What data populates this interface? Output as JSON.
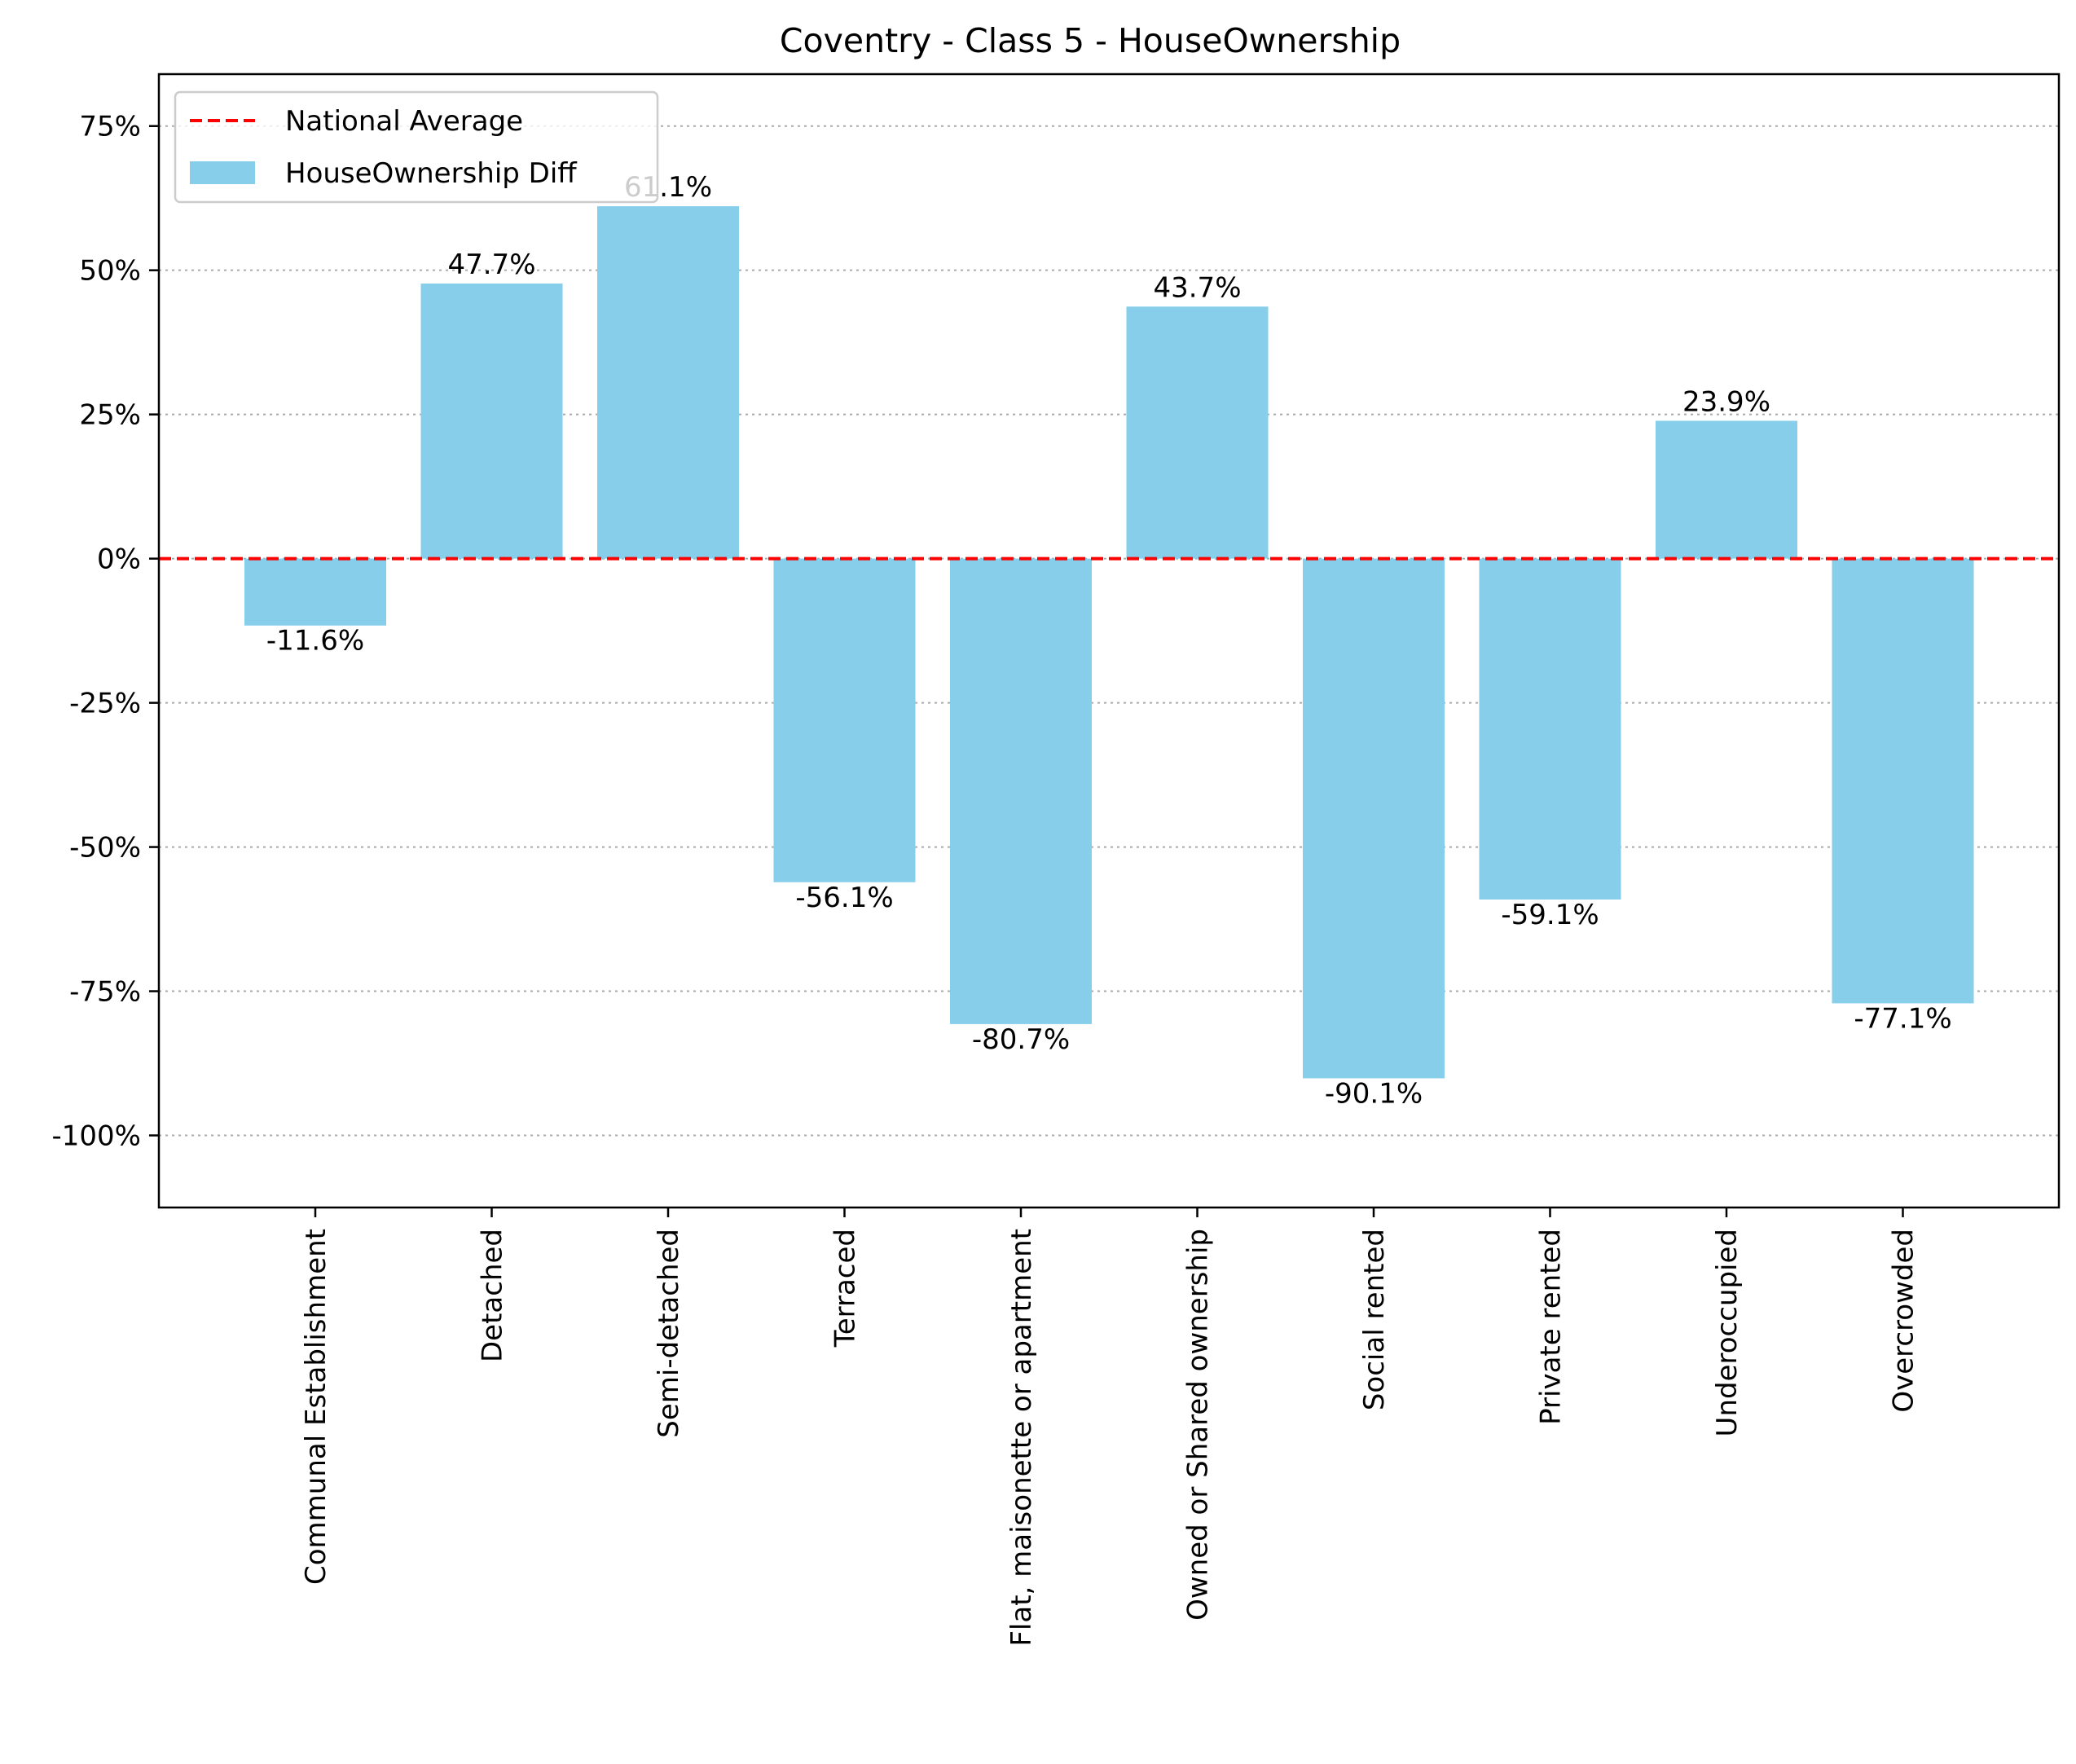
{
  "chart_data": {
    "type": "bar",
    "title": "Coventry - Class 5 - HouseOwnership",
    "xlabel": "",
    "ylabel": "",
    "categories": [
      "Communal Establishment",
      "Detached",
      "Semi-detached",
      "Terraced",
      "Flat, maisonette or apartment",
      "Owned or Shared ownership",
      "Social rented",
      "Private rented",
      "Underoccupied",
      "Overcrowded"
    ],
    "series": [
      {
        "name": "HouseOwnership Diff",
        "values": [
          -11.6,
          47.7,
          61.1,
          -56.1,
          -80.7,
          43.7,
          -90.1,
          -59.1,
          23.9,
          -77.1
        ],
        "color": "#87CEEB"
      }
    ],
    "value_labels": [
      "-11.6%",
      "47.7%",
      "61.1%",
      "-56.1%",
      "-80.7%",
      "43.7%",
      "-90.1%",
      "-59.1%",
      "23.9%",
      "-77.1%"
    ],
    "reference_line": {
      "name": "National Average",
      "value": 0,
      "color": "#FF0000",
      "style": "dashed"
    },
    "ylim": [
      -112.5,
      84
    ],
    "yticks": [
      75,
      50,
      25,
      0,
      -25,
      -50,
      -75,
      -100
    ],
    "ytick_labels": [
      "75%",
      "50%",
      "25%",
      "0%",
      "-25%",
      "-50%",
      "-75%",
      "-100%"
    ],
    "grid": {
      "y": true,
      "x": false,
      "style": "dotted",
      "color": "#AAAAAA"
    },
    "legend": {
      "position": "top-left",
      "entries": [
        "National Average",
        "HouseOwnership Diff"
      ]
    }
  }
}
